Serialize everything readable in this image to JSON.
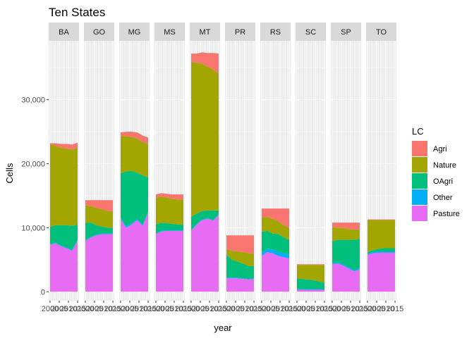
{
  "chart_data": {
    "type": "area",
    "title": "Ten States",
    "xlabel": "year",
    "ylabel": "Cells",
    "ylim": [
      -1400,
      39200
    ],
    "yticks": [
      0,
      10000,
      20000,
      30000
    ],
    "ytick_labels": [
      "0",
      "10,000",
      "20,000",
      "30,000"
    ],
    "x": [
      2000,
      2003,
      2006,
      2009,
      2012,
      2015
    ],
    "xlim": [
      1999.25,
      2015.75
    ],
    "xticks": [
      2000,
      2005,
      2010,
      2015
    ],
    "xtick_labels": [
      "2000",
      "2005",
      "2010",
      "2015"
    ],
    "stacked": true,
    "grid": true,
    "facet_order": [
      "BA",
      "GO",
      "MG",
      "MS",
      "MT",
      "PR",
      "RS",
      "SC",
      "SP",
      "TO"
    ],
    "legend": {
      "title": "LC",
      "position": "right",
      "items": [
        "Agri",
        "Nature",
        "OAgri",
        "Other",
        "Pasture"
      ]
    },
    "stack_order": [
      "Pasture",
      "Other",
      "OAgri",
      "Nature",
      "Agri"
    ],
    "colors": {
      "Agri": "#F8766D",
      "Nature": "#A3A500",
      "OAgri": "#00BF7D",
      "Other": "#00B0F6",
      "Pasture": "#E76BF3"
    },
    "facets": [
      {
        "state": "BA",
        "series": [
          {
            "name": "Pasture",
            "values": [
              7300,
              7600,
              7100,
              6800,
              6400,
              8000
            ]
          },
          {
            "name": "Other",
            "values": [
              100,
              100,
              100,
              100,
              100,
              100
            ]
          },
          {
            "name": "OAgri",
            "values": [
              2700,
              2700,
              3200,
              3500,
              3800,
              2400
            ]
          },
          {
            "name": "Nature",
            "values": [
              12900,
              12400,
              12100,
              12000,
              11900,
              12000
            ]
          },
          {
            "name": "Agri",
            "values": [
              200,
              400,
              600,
              700,
              800,
              800
            ]
          }
        ]
      },
      {
        "state": "GO",
        "series": [
          {
            "name": "Pasture",
            "values": [
              7900,
              8500,
              8800,
              9000,
              9000,
              9000
            ]
          },
          {
            "name": "Other",
            "values": [
              100,
              100,
              100,
              100,
              100,
              100
            ]
          },
          {
            "name": "OAgri",
            "values": [
              2800,
              2200,
              1500,
              1100,
              900,
              900
            ]
          },
          {
            "name": "Nature",
            "values": [
              2700,
              2600,
              2700,
              2700,
              2600,
              2600
            ]
          },
          {
            "name": "Agri",
            "values": [
              800,
              900,
              1200,
              1400,
              1700,
              1700
            ]
          }
        ]
      },
      {
        "state": "MG",
        "series": [
          {
            "name": "Pasture",
            "values": [
              11400,
              10000,
              10500,
              11200,
              10300,
              12400
            ]
          },
          {
            "name": "Other",
            "values": [
              200,
              200,
              200,
              200,
              200,
              200
            ]
          },
          {
            "name": "OAgri",
            "values": [
              6900,
              8600,
              8200,
              7200,
              7700,
              5300
            ]
          },
          {
            "name": "Nature",
            "values": [
              5800,
              5500,
              5300,
              5300,
              5200,
              5200
            ]
          },
          {
            "name": "Agri",
            "values": [
              600,
              700,
              800,
              1000,
              1000,
              1000
            ]
          }
        ]
      },
      {
        "state": "MS",
        "series": [
          {
            "name": "Pasture",
            "values": [
              9000,
              9400,
              9500,
              9500,
              9500,
              9500
            ]
          },
          {
            "name": "Other",
            "values": [
              100,
              100,
              100,
              100,
              100,
              100
            ]
          },
          {
            "name": "OAgri",
            "values": [
              1400,
              1300,
              1100,
              1000,
              900,
              900
            ]
          },
          {
            "name": "Nature",
            "values": [
              4200,
              4100,
              4000,
              3900,
              3900,
              3900
            ]
          },
          {
            "name": "Agri",
            "values": [
              500,
              500,
              600,
              700,
              800,
              800
            ]
          }
        ]
      },
      {
        "state": "MT",
        "series": [
          {
            "name": "Pasture",
            "values": [
              9500,
              10500,
              11200,
              11400,
              11100,
              12000
            ]
          },
          {
            "name": "Other",
            "values": [
              100,
              100,
              100,
              100,
              100,
              100
            ]
          },
          {
            "name": "OAgri",
            "values": [
              2100,
              1600,
              1300,
              1200,
              1500,
              600
            ]
          },
          {
            "name": "Nature",
            "values": [
              24200,
              23600,
              23000,
              22500,
              22000,
              21400
            ]
          },
          {
            "name": "Agri",
            "values": [
              1300,
              1400,
              1800,
              2100,
              2600,
              3100
            ]
          }
        ]
      },
      {
        "state": "PR",
        "series": [
          {
            "name": "Pasture",
            "values": [
              2100,
              2100,
              2100,
              2000,
              1900,
              2000
            ]
          },
          {
            "name": "Other",
            "values": [
              100,
              100,
              100,
              100,
              100,
              100
            ]
          },
          {
            "name": "OAgri",
            "values": [
              3600,
              2800,
              2500,
              2300,
              2000,
              1900
            ]
          },
          {
            "name": "Nature",
            "values": [
              900,
              1400,
              1600,
              1800,
              2000,
              2000
            ]
          },
          {
            "name": "Agri",
            "values": [
              2100,
              2400,
              2500,
              2600,
              2800,
              2800
            ]
          }
        ]
      },
      {
        "state": "RS",
        "series": [
          {
            "name": "Pasture",
            "values": [
              5600,
              6200,
              6000,
              5600,
              5400,
              5200
            ]
          },
          {
            "name": "Other",
            "values": [
              500,
              500,
              600,
              600,
              600,
              600
            ]
          },
          {
            "name": "OAgri",
            "values": [
              3300,
              2800,
              2500,
              2800,
              2500,
              2300
            ]
          },
          {
            "name": "Nature",
            "values": [
              2200,
              2200,
              2300,
              2000,
              1900,
              1900
            ]
          },
          {
            "name": "Agri",
            "values": [
              1400,
              1300,
              1600,
              2000,
              2600,
              3000
            ]
          }
        ]
      },
      {
        "state": "SC",
        "series": [
          {
            "name": "Pasture",
            "values": [
              300,
              300,
              300,
              300,
              300,
              300
            ]
          },
          {
            "name": "Other",
            "values": [
              100,
              100,
              100,
              100,
              100,
              100
            ]
          },
          {
            "name": "OAgri",
            "values": [
              1700,
              1600,
              1500,
              1400,
              1200,
              1000
            ]
          },
          {
            "name": "Nature",
            "values": [
              2100,
              2200,
              2300,
              2400,
              2600,
              2800
            ]
          },
          {
            "name": "Agri",
            "values": [
              100,
              100,
              100,
              100,
              100,
              100
            ]
          }
        ]
      },
      {
        "state": "SP",
        "series": [
          {
            "name": "Pasture",
            "values": [
              4300,
              4400,
              4100,
              3600,
              3200,
              3500
            ]
          },
          {
            "name": "Other",
            "values": [
              200,
              200,
              200,
              200,
              200,
              200
            ]
          },
          {
            "name": "OAgri",
            "values": [
              3400,
              3500,
              3800,
              4300,
              4700,
              4600
            ]
          },
          {
            "name": "Nature",
            "values": [
              2200,
              1900,
              1900,
              1700,
              1600,
              1400
            ]
          },
          {
            "name": "Agri",
            "values": [
              700,
              800,
              800,
              1000,
              1100,
              1100
            ]
          }
        ]
      },
      {
        "state": "TO",
        "series": [
          {
            "name": "Pasture",
            "values": [
              5800,
              6000,
              6100,
              6100,
              6100,
              6100
            ]
          },
          {
            "name": "Other",
            "values": [
              200,
              200,
              200,
              200,
              200,
              200
            ]
          },
          {
            "name": "OAgri",
            "values": [
              200,
              300,
              400,
              500,
              500,
              500
            ]
          },
          {
            "name": "Nature",
            "values": [
              5000,
              4700,
              4500,
              4400,
              4400,
              4400
            ]
          },
          {
            "name": "Agri",
            "values": [
              100,
              100,
              100,
              100,
              100,
              100
            ]
          }
        ]
      }
    ]
  }
}
